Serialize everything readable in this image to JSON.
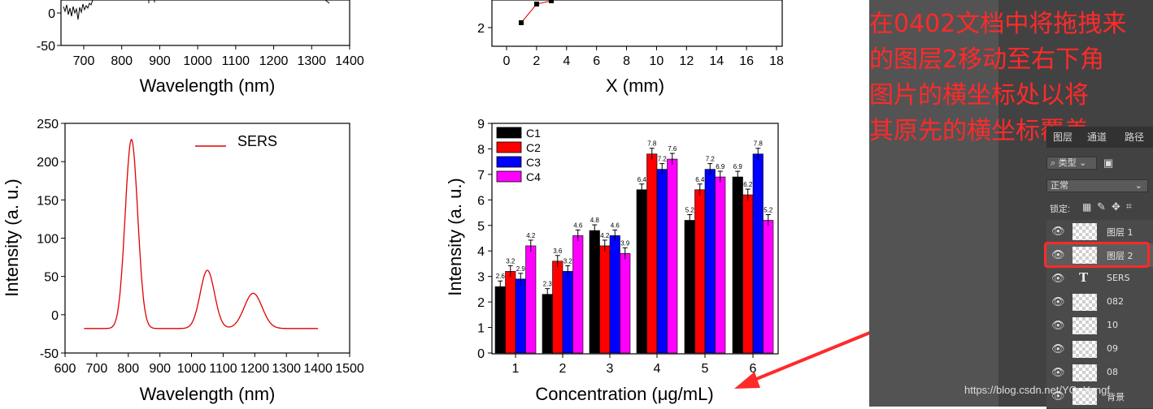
{
  "chart_data": [
    {
      "type": "line",
      "id": "top-left-spectrum",
      "xlabel": "Wavelength (nm)",
      "xticks": [
        "700",
        "800",
        "900",
        "1000",
        "1100",
        "1200",
        "1300",
        "1400"
      ],
      "yticks": [
        "0",
        "-50"
      ],
      "note": "cropped at top"
    },
    {
      "type": "scatter",
      "id": "top-mid-plot",
      "xlabel": "X (mm)",
      "xticks": [
        "0",
        "2",
        "4",
        "6",
        "8",
        "10",
        "12",
        "14",
        "16",
        "18"
      ],
      "yticks": [
        "2"
      ],
      "points": [
        {
          "x": 1,
          "y": 2.2
        },
        {
          "x": 2,
          "y": 3.2
        },
        {
          "x": 3,
          "y": 3.5
        }
      ]
    },
    {
      "type": "line",
      "id": "sers-spectrum",
      "title": "",
      "legend": "SERS",
      "xlabel": "Wavelength (nm)",
      "ylabel": "Intensity (a. u.)",
      "xlim": [
        600,
        1500
      ],
      "ylim": [
        -50,
        250
      ],
      "xticks": [
        "600",
        "700",
        "800",
        "900",
        "1000",
        "1100",
        "1200",
        "1300",
        "1400",
        "1500"
      ],
      "yticks": [
        "250",
        "200",
        "150",
        "100",
        "50",
        "0",
        "-50"
      ],
      "series": [
        {
          "name": "SERS",
          "color": "#e00000",
          "peaks": [
            {
              "center": 810,
              "height": 247,
              "width": 28
            },
            {
              "center": 1050,
              "height": 76,
              "width": 32
            },
            {
              "center": 1195,
              "height": 46,
              "width": 40
            }
          ],
          "baseline": -18,
          "x_start": 660,
          "x_end": 1400
        }
      ]
    },
    {
      "type": "bar",
      "id": "concentration-bars",
      "xlabel": "Concentration (μg/mL)",
      "ylabel": "Intensity (a. u.)",
      "ylim": [
        0,
        9
      ],
      "categories": [
        "1",
        "2",
        "3",
        "4",
        "5",
        "6"
      ],
      "yticks": [
        "0",
        "1",
        "2",
        "3",
        "4",
        "5",
        "6",
        "7",
        "8",
        "9"
      ],
      "series": [
        {
          "name": "C1",
          "color": "#000000",
          "values": [
            2.6,
            2.3,
            4.8,
            6.4,
            5.2,
            6.9
          ],
          "labels": [
            "2.6",
            "2.3",
            "4.8",
            "6.4",
            "5.2",
            "6.9"
          ]
        },
        {
          "name": "C2",
          "color": "#ff0000",
          "values": [
            3.2,
            3.6,
            4.2,
            7.8,
            6.4,
            6.2
          ],
          "labels": [
            "3.2",
            "3.6",
            "",
            "7.8",
            "6.4",
            "6.2"
          ]
        },
        {
          "name": "C3",
          "color": "#0000ff",
          "values": [
            2.9,
            3.2,
            4.6,
            7.2,
            7.2,
            7.8
          ],
          "labels": [
            "2.9",
            "3.2",
            "4.6",
            "7.2",
            "7.2",
            "7.8"
          ]
        },
        {
          "name": "C4",
          "color": "#ff00ff",
          "values": [
            4.2,
            4.6,
            3.9,
            7.6,
            6.9,
            5.2
          ],
          "labels": [
            "4.2",
            "4.6",
            "3.9",
            "7.6",
            "6.9",
            "5.2"
          ]
        }
      ],
      "extra_labels": [
        {
          "category": "3",
          "text": "4.2"
        }
      ]
    }
  ],
  "annotation": {
    "lines": [
      "在0402文档中将拖拽来",
      "的图层2移动至右下角",
      "图片的横坐标处以将",
      "其原先的横坐标覆盖"
    ]
  },
  "ps_panel": {
    "tabs": [
      "图层",
      "通道",
      "路径"
    ],
    "filter_label": "类型",
    "blend_mode": "正常",
    "lock_label": "锁定:",
    "layers": [
      {
        "name": "图层 1",
        "type": "pixel",
        "selected": false
      },
      {
        "name": "图层 2",
        "type": "pixel",
        "selected": true
      },
      {
        "name": "SERS",
        "type": "text",
        "selected": false
      },
      {
        "name": "082",
        "type": "pixel",
        "selected": false
      },
      {
        "name": "10",
        "type": "pixel",
        "selected": false
      },
      {
        "name": "09",
        "type": "pixel",
        "selected": false
      },
      {
        "name": "08",
        "type": "pixel",
        "selected": false
      },
      {
        "name": "背景",
        "type": "pixel",
        "selected": false
      }
    ]
  },
  "watermark": "https://blog.csdn.net/YO_Yangf",
  "colors": {
    "annotation": "#ff2a2a",
    "panel": "#424242"
  }
}
